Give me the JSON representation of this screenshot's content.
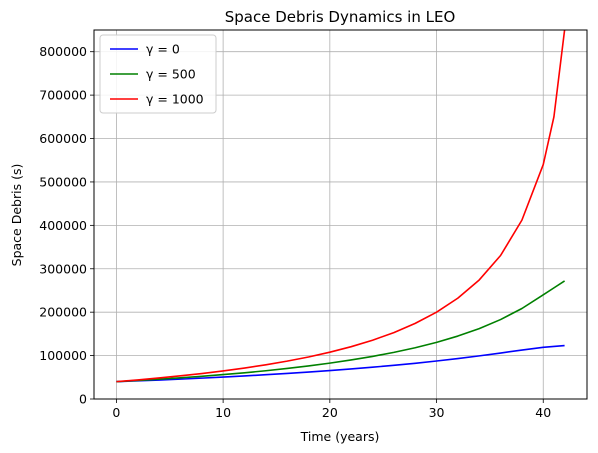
{
  "chart_data": {
    "type": "line",
    "title": "Space Debris Dynamics in LEO",
    "xlabel": "Time (years)",
    "ylabel": "Space Debris (s)",
    "xlim": [
      -2.1,
      44.1
    ],
    "ylim": [
      0,
      850000
    ],
    "xticks": [
      0,
      10,
      20,
      30,
      40
    ],
    "yticks": [
      0,
      100000,
      200000,
      300000,
      400000,
      500000,
      600000,
      700000,
      800000
    ],
    "grid": true,
    "legend_position": "top-left",
    "x": [
      0,
      2,
      4,
      6,
      8,
      10,
      12,
      14,
      16,
      18,
      20,
      22,
      24,
      26,
      28,
      30,
      32,
      34,
      36,
      38,
      40,
      41,
      42
    ],
    "series": [
      {
        "name": "γ = 0",
        "color": "#0000ff",
        "values": [
          40000,
          41800,
          43700,
          45800,
          48100,
          50500,
          53100,
          55900,
          58900,
          62100,
          65500,
          69200,
          73200,
          77600,
          82300,
          87500,
          93100,
          99300,
          105900,
          112800,
          119000,
          121000,
          123000
        ]
      },
      {
        "name": "γ = 500",
        "color": "#008000",
        "values": [
          40000,
          42700,
          45600,
          48800,
          52300,
          56200,
          60400,
          65100,
          70300,
          76100,
          82600,
          89900,
          98100,
          107400,
          118100,
          130500,
          145000,
          162200,
          183000,
          208500,
          240000,
          256000,
          272000
        ]
      },
      {
        "name": "γ = 1000",
        "color": "#ff0000",
        "values": [
          40000,
          44000,
          48500,
          53400,
          58700,
          64600,
          71300,
          78800,
          87200,
          96800,
          107800,
          120500,
          135400,
          153000,
          174200,
          200000,
          232400,
          274200,
          330500,
          412000,
          540000,
          650000,
          850000
        ]
      }
    ]
  }
}
